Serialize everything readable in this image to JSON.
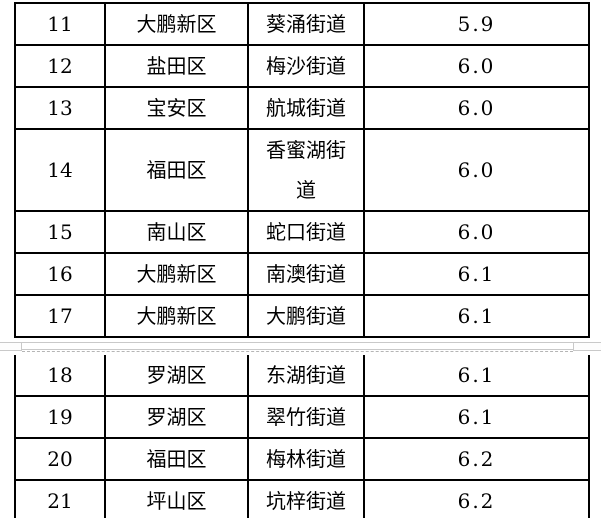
{
  "colors": {
    "background": "#ffffff",
    "text": "#000000",
    "table_border": "#000000",
    "page_edge_gray": "#c9c9c9",
    "dashed_continuation_gray": "#b5b5b5"
  },
  "table": {
    "column_keys": [
      "rank",
      "district",
      "street",
      "value"
    ],
    "pages": [
      {
        "rows": [
          {
            "rank": "11",
            "district": "大鹏新区",
            "street": "葵涌街道",
            "value": "5.9"
          },
          {
            "rank": "12",
            "district": "盐田区",
            "street": "梅沙街道",
            "value": "6.0"
          },
          {
            "rank": "13",
            "district": "宝安区",
            "street": "航城街道",
            "value": "6.0"
          },
          {
            "rank": "14",
            "district": "福田区",
            "street": "香蜜湖街道",
            "value": "6.0"
          },
          {
            "rank": "15",
            "district": "南山区",
            "street": "蛇口街道",
            "value": "6.0"
          },
          {
            "rank": "16",
            "district": "大鹏新区",
            "street": "南澳街道",
            "value": "6.1"
          },
          {
            "rank": "17",
            "district": "大鹏新区",
            "street": "大鹏街道",
            "value": "6.1"
          }
        ]
      },
      {
        "rows": [
          {
            "rank": "18",
            "district": "罗湖区",
            "street": "东湖街道",
            "value": "6.1"
          },
          {
            "rank": "19",
            "district": "罗湖区",
            "street": "翠竹街道",
            "value": "6.1"
          },
          {
            "rank": "20",
            "district": "福田区",
            "street": "梅林街道",
            "value": "6.2"
          },
          {
            "rank": "21",
            "district": "坪山区",
            "street": "坑梓街道",
            "value": "6.2"
          }
        ]
      }
    ]
  }
}
